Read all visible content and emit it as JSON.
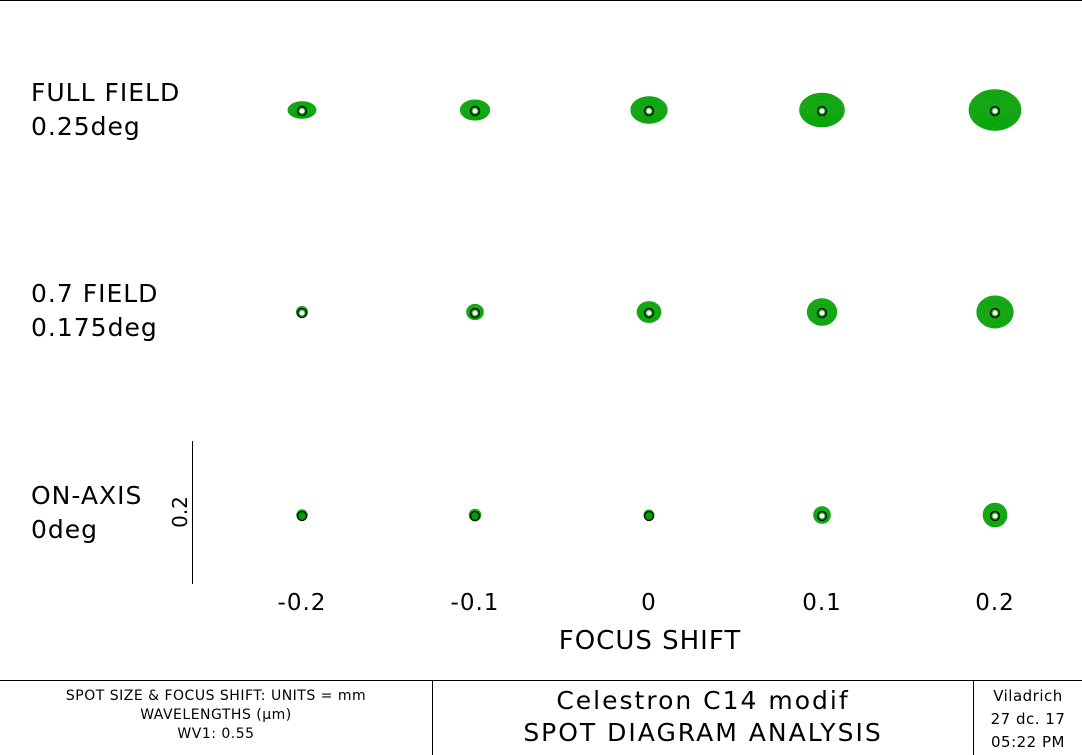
{
  "rows": [
    {
      "label_line1": "FULL FIELD",
      "label_line2": "0.25deg"
    },
    {
      "label_line1": "0.7 FIELD",
      "label_line2": "0.175deg"
    },
    {
      "label_line1": "ON-AXIS",
      "label_line2": "0deg"
    }
  ],
  "focus_shift_labels": [
    "-0.2",
    "-0.1",
    "0",
    "0.1",
    "0.2"
  ],
  "x_axis_title": "FOCUS SHIFT",
  "scale_bar_label": "0.2",
  "footer": {
    "left_line1": "SPOT SIZE & FOCUS SHIFT: UNITS = mm",
    "left_line2": "WAVELENGTHS (μm)",
    "left_line3": "WV1: 0.55",
    "title_line1": "Celestron C14 modif",
    "title_line2": "SPOT DIAGRAM ANALYSIS",
    "author": "Viladrich",
    "date": "27 dc. 17",
    "time": "05:22 PM"
  },
  "colors": {
    "spot": "#00a000",
    "ring": "#000000"
  },
  "spot_diagrams": [
    [
      {
        "rx": 1.0,
        "ry": 0.6
      },
      {
        "rx": 1.05,
        "ry": 0.72
      },
      {
        "rx": 1.3,
        "ry": 0.95
      },
      {
        "rx": 1.6,
        "ry": 1.2
      },
      {
        "rx": 1.85,
        "ry": 1.45
      }
    ],
    [
      {
        "rx": 0.4,
        "ry": 0.4
      },
      {
        "rx": 0.6,
        "ry": 0.55
      },
      {
        "rx": 0.85,
        "ry": 0.75
      },
      {
        "rx": 1.05,
        "ry": 0.95
      },
      {
        "rx": 1.3,
        "ry": 1.15
      }
    ],
    [
      {
        "rx": 0.38,
        "ry": 0.38
      },
      {
        "rx": 0.42,
        "ry": 0.42
      },
      {
        "rx": 0.36,
        "ry": 0.36
      },
      {
        "rx": 0.6,
        "ry": 0.6
      },
      {
        "rx": 0.85,
        "ry": 0.85
      }
    ]
  ]
}
